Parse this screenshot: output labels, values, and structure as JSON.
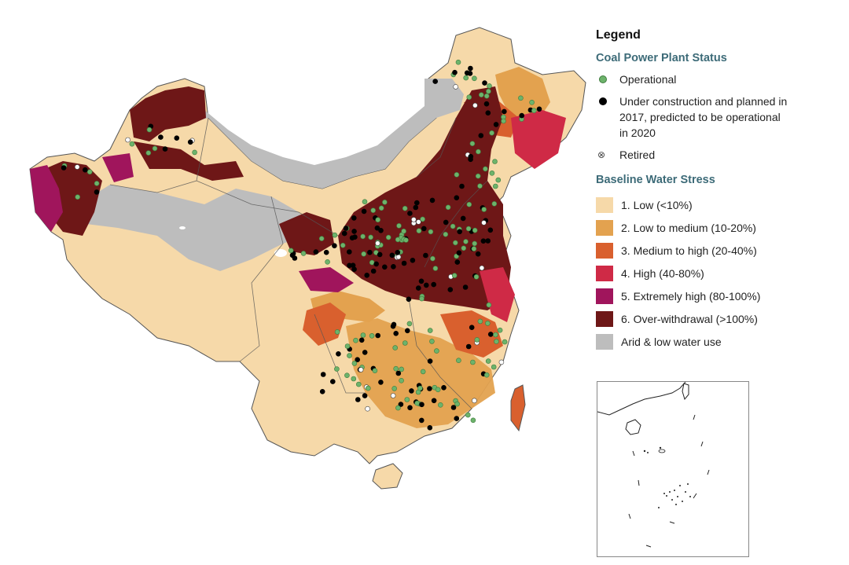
{
  "legend": {
    "title": "Legend",
    "status_title": "Coal Power Plant Status",
    "status_items": [
      {
        "label": "Operational",
        "icon": "green-dot-icon",
        "color": "#6db36b"
      },
      {
        "label": "Under construction and planned in 2017, predicted to be operational in 2020",
        "icon": "black-dot-icon",
        "color": "#000000"
      },
      {
        "label": "Retired",
        "icon": "crossed-circle-icon",
        "color": "#555555"
      }
    ],
    "stress_title": "Baseline Water Stress",
    "stress_items": [
      {
        "label": "1. Low (<10%)",
        "color": "#f6d9a9"
      },
      {
        "label": "2. Low to medium (10-20%)",
        "color": "#e3a24f"
      },
      {
        "label": "3. Medium to high (20-40%)",
        "color": "#d9602e"
      },
      {
        "label": "4. High (40-80%)",
        "color": "#cf2a46"
      },
      {
        "label": "5. Extremely high (80-100%)",
        "color": "#a0155c"
      },
      {
        "label": "6. Over-withdrawal (>100%)",
        "color": "#6e1717"
      },
      {
        "label": "Arid & low water use",
        "color": "#bdbdbd"
      }
    ]
  }
}
